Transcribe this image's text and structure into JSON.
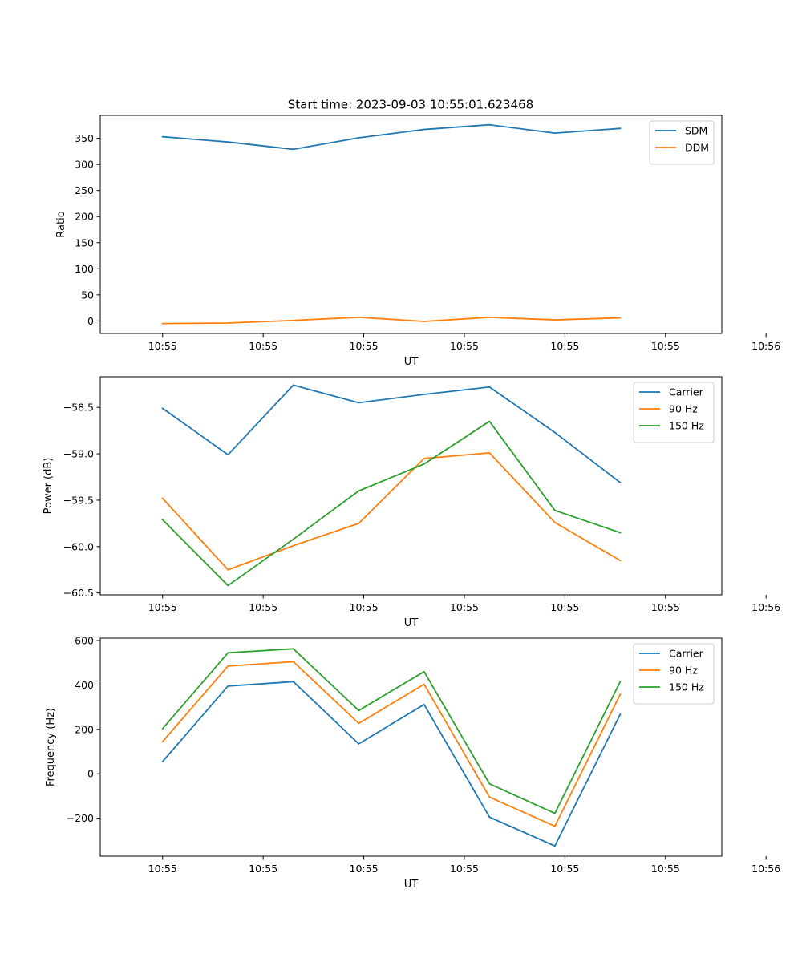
{
  "figure_title": "Start time: 2023-09-03 10:55:01.623468",
  "colors": {
    "blue": "#1f77b4",
    "orange": "#ff7f0e",
    "green": "#2ca02c"
  },
  "chart_data": [
    {
      "type": "line",
      "title": "Start time: 2023-09-03 10:55:01.623468",
      "xlabel": "UT",
      "ylabel": "Ratio",
      "xlim": [
        -0.62,
        5.56
      ],
      "ylim": [
        -24,
        394
      ],
      "x": [
        0,
        0.65,
        1.3,
        1.95,
        2.6,
        3.25,
        3.9,
        4.55
      ],
      "xtick_positions": [
        0,
        1,
        2,
        3,
        4,
        5,
        6
      ],
      "xtick_labels": [
        "10:55",
        "10:55",
        "10:55",
        "10:55",
        "10:55",
        "10:55",
        "10:56"
      ],
      "yticks": [
        0,
        50,
        100,
        150,
        200,
        250,
        300,
        350
      ],
      "ytick_labels": [
        "0",
        "50",
        "100",
        "150",
        "200",
        "250",
        "300",
        "350"
      ],
      "legend_position": "top-right",
      "series": [
        {
          "name": "SDM",
          "color": "#1f77b4",
          "values": [
            353,
            343,
            329,
            351,
            367,
            376,
            360,
            369
          ]
        },
        {
          "name": "DDM",
          "color": "#ff7f0e",
          "values": [
            -5,
            -4,
            1,
            7,
            -1,
            7,
            2,
            6
          ]
        }
      ]
    },
    {
      "type": "line",
      "title": "",
      "xlabel": "UT",
      "ylabel": "Power (dB)",
      "xlim": [
        -0.62,
        5.56
      ],
      "ylim": [
        -60.52,
        -58.17
      ],
      "x": [
        0,
        0.65,
        1.3,
        1.95,
        2.6,
        3.25,
        3.9,
        4.55
      ],
      "xtick_positions": [
        0,
        1,
        2,
        3,
        4,
        5,
        6
      ],
      "xtick_labels": [
        "10:55",
        "10:55",
        "10:55",
        "10:55",
        "10:55",
        "10:55",
        "10:56"
      ],
      "yticks": [
        -60.5,
        -60.0,
        -59.5,
        -59.0,
        -58.5
      ],
      "ytick_labels": [
        "−60.5",
        "−60.0",
        "−59.5",
        "−59.0",
        "−58.5"
      ],
      "legend_position": "top-right",
      "series": [
        {
          "name": "Carrier",
          "color": "#1f77b4",
          "values": [
            -58.51,
            -59.01,
            -58.26,
            -58.45,
            -58.36,
            -58.28,
            -58.77,
            -59.31
          ]
        },
        {
          "name": "90 Hz",
          "color": "#ff7f0e",
          "values": [
            -59.48,
            -60.25,
            -59.99,
            -59.75,
            -59.05,
            -58.99,
            -59.74,
            -60.15
          ]
        },
        {
          "name": "150 Hz",
          "color": "#2ca02c",
          "values": [
            -59.71,
            -60.42,
            -59.92,
            -59.4,
            -59.11,
            -58.65,
            -59.61,
            -59.85
          ]
        }
      ]
    },
    {
      "type": "line",
      "title": "",
      "xlabel": "UT",
      "ylabel": "Frequency (Hz)",
      "xlim": [
        -0.62,
        5.56
      ],
      "ylim": [
        -371,
        611
      ],
      "x": [
        0,
        0.65,
        1.3,
        1.95,
        2.6,
        3.25,
        3.9,
        4.55
      ],
      "xtick_positions": [
        0,
        1,
        2,
        3,
        4,
        5,
        6
      ],
      "xtick_labels": [
        "10:55",
        "10:55",
        "10:55",
        "10:55",
        "10:55",
        "10:55",
        "10:56"
      ],
      "yticks": [
        -200,
        0,
        200,
        400,
        600
      ],
      "ytick_labels": [
        "−200",
        "0",
        "200",
        "400",
        "600"
      ],
      "legend_position": "top-right",
      "series": [
        {
          "name": "Carrier",
          "color": "#1f77b4",
          "values": [
            55,
            395,
            415,
            135,
            312,
            -195,
            -325,
            268
          ]
        },
        {
          "name": "90 Hz",
          "color": "#ff7f0e",
          "values": [
            145,
            485,
            505,
            227,
            403,
            -105,
            -236,
            358
          ]
        },
        {
          "name": "150 Hz",
          "color": "#2ca02c",
          "values": [
            203,
            545,
            563,
            285,
            460,
            -45,
            -178,
            415
          ]
        }
      ]
    }
  ]
}
